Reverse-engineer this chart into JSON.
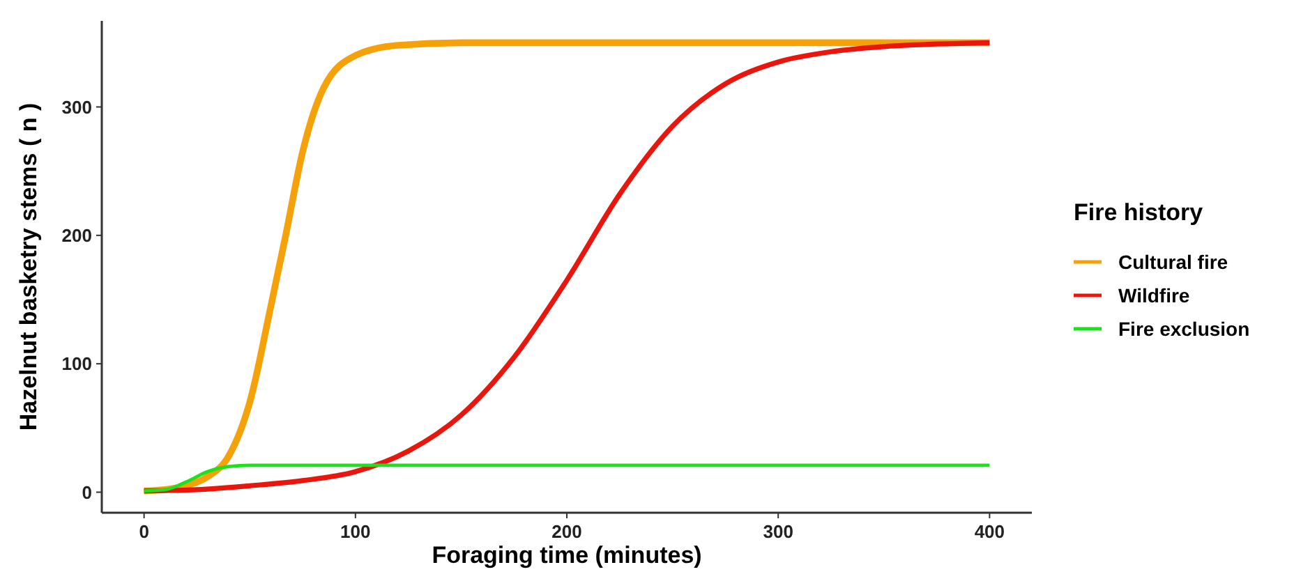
{
  "chart_data": {
    "type": "line",
    "xlabel": "Foraging time (minutes)",
    "ylabel": "Hazelnut basketry stems ( n )",
    "legend_title": "Fire history",
    "legend": "right",
    "grid": false,
    "marker": "none",
    "line_style": "solid",
    "xlim": [
      -20,
      420
    ],
    "xticks": [
      0,
      100,
      200,
      300,
      400
    ],
    "ylim": [
      -16,
      367
    ],
    "yticks": [
      0,
      100,
      200,
      300
    ],
    "series": [
      {
        "name": "Cultural fire",
        "color": "#f5a20a",
        "x": [
          0,
          10,
          20,
          30,
          40,
          50,
          60,
          67,
          75,
          85,
          100,
          120,
          150,
          200,
          300,
          400
        ],
        "values": [
          1,
          2,
          5,
          12,
          28,
          70,
          145,
          200,
          265,
          315,
          340,
          348,
          350,
          350,
          350,
          350
        ]
      },
      {
        "name": "Wildfire",
        "color": "#e8160c",
        "x": [
          0,
          25,
          50,
          75,
          100,
          125,
          150,
          175,
          200,
          225,
          250,
          275,
          300,
          325,
          350,
          375,
          400
        ],
        "values": [
          1,
          2,
          5,
          9,
          16,
          32,
          60,
          105,
          165,
          232,
          285,
          318,
          335,
          343,
          347,
          349,
          350
        ]
      },
      {
        "name": "Fire exclusion",
        "color": "#1ee01e",
        "x": [
          0,
          10,
          20,
          30,
          40,
          50,
          100,
          200,
          400
        ],
        "values": [
          1,
          2,
          8,
          16,
          20,
          21,
          21,
          21,
          21
        ]
      }
    ]
  }
}
